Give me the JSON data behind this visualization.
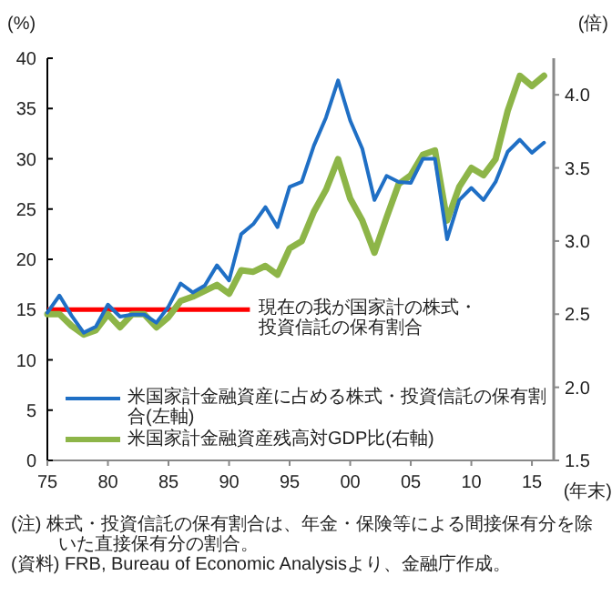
{
  "chart_data": {
    "type": "line",
    "x": [
      1975,
      1976,
      1977,
      1978,
      1979,
      1980,
      1981,
      1982,
      1983,
      1984,
      1985,
      1986,
      1987,
      1988,
      1989,
      1990,
      1991,
      1992,
      1993,
      1994,
      1995,
      1996,
      1997,
      1998,
      1999,
      2000,
      2001,
      2002,
      2003,
      2004,
      2005,
      2006,
      2007,
      2008,
      2009,
      2010,
      2011,
      2012,
      2013,
      2014,
      2015,
      2016
    ],
    "series": [
      {
        "name": "米国家計金融資産に占める株式・投資信託の保有割合(左軸)",
        "color": "#1f6fc5",
        "values": [
          14.7,
          16.4,
          14.4,
          12.7,
          13.3,
          15.5,
          14.3,
          14.5,
          14.5,
          13.7,
          15.3,
          17.6,
          16.7,
          17.4,
          19.4,
          17.9,
          22.5,
          23.5,
          25.2,
          23.2,
          27.2,
          27.7,
          31.3,
          34.1,
          37.8,
          33.8,
          31.0,
          25.9,
          28.3,
          27.7,
          27.6,
          30.0,
          30.0,
          22.0,
          25.9,
          27.1,
          25.9,
          27.7,
          30.7,
          31.9,
          30.6,
          31.6
        ]
      },
      {
        "name": "米国家計金融資産残高対GDP比(右軸)",
        "color": "#8db548",
        "axis": "y2",
        "values": [
          2.5,
          2.5,
          2.42,
          2.36,
          2.39,
          2.5,
          2.41,
          2.5,
          2.5,
          2.41,
          2.48,
          2.59,
          2.62,
          2.66,
          2.7,
          2.64,
          2.8,
          2.79,
          2.83,
          2.77,
          2.95,
          3.0,
          3.2,
          3.35,
          3.56,
          3.29,
          3.14,
          2.92,
          3.16,
          3.39,
          3.45,
          3.59,
          3.62,
          3.14,
          3.37,
          3.5,
          3.45,
          3.56,
          3.89,
          4.13,
          4.06,
          4.13
        ]
      }
    ],
    "xlim": [
      1975,
      2016.8
    ],
    "xticks": [
      {
        "value": 1975,
        "label": "75"
      },
      {
        "value": 1980,
        "label": "80"
      },
      {
        "value": 1985,
        "label": "85"
      },
      {
        "value": 1990,
        "label": "90"
      },
      {
        "value": 1995,
        "label": "95"
      },
      {
        "value": 2000,
        "label": "00"
      },
      {
        "value": 2005,
        "label": "05"
      },
      {
        "value": 2010,
        "label": "10"
      },
      {
        "value": 2015,
        "label": "15"
      }
    ],
    "ylim": [
      0,
      40
    ],
    "yticks": [
      0,
      5,
      10,
      15,
      20,
      25,
      30,
      35,
      40
    ],
    "y2lim": [
      1.5,
      4.25
    ],
    "y2ticks": [
      {
        "value": 1.5,
        "label": "1.5"
      },
      {
        "value": 2,
        "label": "2.0"
      },
      {
        "value": 2.5,
        "label": "2.5"
      },
      {
        "value": 3,
        "label": "3.0"
      },
      {
        "value": 3.5,
        "label": "3.5"
      },
      {
        "value": 4,
        "label": "4.0"
      }
    ],
    "xlabel": "(年末)",
    "ylabel": "(%)",
    "y2label": "(倍)",
    "legend": "bottom left",
    "ref_lines": [
      {
        "axis": "y",
        "value": 15,
        "label": "現在の我が国家計の株式・投資信託の保有割合",
        "color": "#ff0000"
      }
    ],
    "annotations": [
      "(注) 株式・投資信託の保有割合は、年金・保険等による間接保有分を除いた直接保有分の割合。",
      "(資料) FRB, Bureau of Economic Analysisより、金融庁作成。"
    ]
  }
}
